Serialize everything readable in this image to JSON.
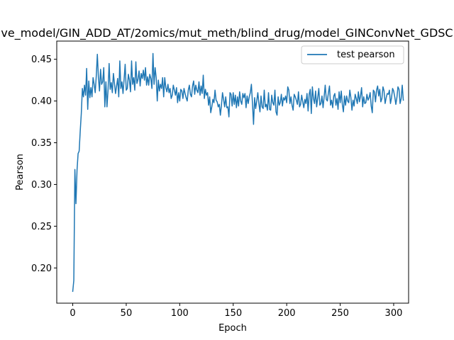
{
  "chart_data": {
    "type": "line",
    "title": "ve_model/GIN_ADD_AT/2omics/mut_meth/blind_drug/model_GINConvNet_GDSC",
    "xlabel": "Epoch",
    "ylabel": "Pearson",
    "xlim": [
      -14.95,
      313.95
    ],
    "ylim": [
      0.1578,
      0.4718
    ],
    "xticks": [
      0,
      50,
      100,
      150,
      200,
      250,
      300
    ],
    "yticks": [
      0.2,
      0.25,
      0.3,
      0.35,
      0.4,
      0.45
    ],
    "ytick_labels": [
      "0.20",
      "0.25",
      "0.30",
      "0.35",
      "0.40",
      "0.45"
    ],
    "grid": false,
    "legend_position": "upper-right",
    "series": [
      {
        "name": "test pearson",
        "color": "#1f77b4",
        "x_start": 0,
        "x_step": 1,
        "values": [
          0.172,
          0.185,
          0.318,
          0.277,
          0.317,
          0.337,
          0.34,
          0.364,
          0.385,
          0.415,
          0.405,
          0.419,
          0.407,
          0.439,
          0.39,
          0.424,
          0.404,
          0.416,
          0.405,
          0.428,
          0.42,
          0.41,
          0.43,
          0.456,
          0.428,
          0.412,
          0.438,
          0.42,
          0.423,
          0.44,
          0.393,
          0.423,
          0.393,
          0.413,
          0.445,
          0.414,
          0.422,
          0.41,
          0.433,
          0.421,
          0.409,
          0.418,
          0.427,
          0.405,
          0.448,
          0.415,
          0.423,
          0.409,
          0.426,
          0.444,
          0.413,
          0.415,
          0.432,
          0.425,
          0.411,
          0.448,
          0.42,
          0.428,
          0.413,
          0.447,
          0.421,
          0.426,
          0.436,
          0.418,
          0.433,
          0.427,
          0.437,
          0.425,
          0.44,
          0.419,
          0.429,
          0.419,
          0.432,
          0.427,
          0.415,
          0.457,
          0.42,
          0.44,
          0.428,
          0.4,
          0.425,
          0.412,
          0.42,
          0.415,
          0.428,
          0.405,
          0.428,
          0.416,
          0.411,
          0.42,
          0.41,
          0.415,
          0.403,
          0.407,
          0.419,
          0.413,
          0.407,
          0.416,
          0.398,
          0.41,
          0.4,
          0.414,
          0.412,
          0.403,
          0.415,
          0.409,
          0.404,
          0.4,
          0.413,
          0.419,
          0.408,
          0.405,
          0.418,
          0.424,
          0.408,
          0.419,
          0.413,
          0.41,
          0.423,
          0.407,
          0.418,
          0.409,
          0.431,
          0.403,
          0.414,
          0.407,
          0.41,
          0.395,
          0.405,
          0.386,
          0.393,
          0.402,
          0.398,
          0.413,
          0.401,
          0.399,
          0.393,
          0.396,
          0.383,
          0.395,
          0.41,
          0.402,
          0.393,
          0.405,
          0.392,
          0.393,
          0.381,
          0.41,
          0.408,
          0.394,
          0.41,
          0.396,
          0.407,
          0.392,
          0.405,
          0.394,
          0.411,
          0.4,
          0.396,
          0.409,
          0.404,
          0.409,
          0.392,
          0.406,
          0.397,
          0.405,
          0.41,
          0.42,
          0.397,
          0.372,
          0.404,
          0.391,
          0.4,
          0.41,
          0.397,
          0.387,
          0.406,
          0.393,
          0.391,
          0.413,
          0.393,
          0.396,
          0.389,
          0.41,
          0.39,
          0.389,
          0.407,
          0.398,
          0.395,
          0.413,
          0.387,
          0.383,
          0.405,
          0.395,
          0.398,
          0.408,
          0.394,
          0.404,
          0.401,
          0.406,
          0.398,
          0.417,
          0.413,
          0.397,
          0.405,
          0.395,
          0.389,
          0.408,
          0.405,
          0.401,
          0.396,
          0.411,
          0.393,
          0.396,
          0.407,
          0.399,
          0.392,
          0.402,
          0.397,
          0.409,
          0.388,
          0.408,
          0.414,
          0.385,
          0.417,
          0.403,
          0.397,
          0.412,
          0.393,
          0.404,
          0.415,
          0.395,
          0.397,
          0.406,
          0.392,
          0.405,
          0.419,
          0.402,
          0.4,
          0.41,
          0.418,
          0.395,
          0.401,
          0.392,
          0.406,
          0.409,
          0.395,
          0.403,
          0.39,
          0.411,
          0.398,
          0.412,
          0.396,
          0.387,
          0.406,
          0.395,
          0.406,
          0.4,
          0.398,
          0.413,
          0.404,
          0.389,
          0.401,
          0.394,
          0.408,
          0.403,
          0.397,
          0.411,
          0.399,
          0.406,
          0.416,
          0.393,
          0.405,
          0.397,
          0.398,
          0.408,
          0.401,
          0.404,
          0.41,
          0.394,
          0.386,
          0.413,
          0.411,
          0.399,
          0.413,
          0.418,
          0.406,
          0.414,
          0.399,
          0.403,
          0.417,
          0.412,
          0.397,
          0.404,
          0.409,
          0.408,
          0.413,
          0.397,
          0.404,
          0.415,
          0.412,
          0.405,
          0.396,
          0.404,
          0.417,
          0.414,
          0.397,
          0.403,
          0.419,
          0.401
        ]
      }
    ]
  }
}
